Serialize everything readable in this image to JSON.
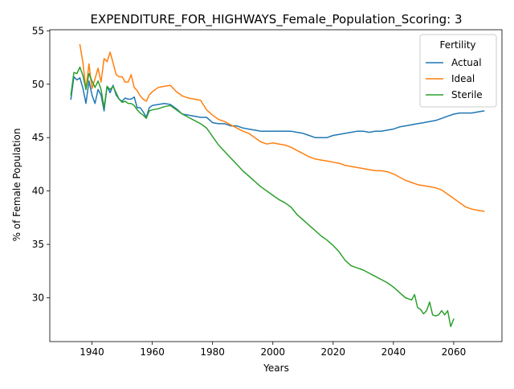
{
  "chart_data": {
    "type": "line",
    "title": "EXPENDITURE_FOR_HIGHWAYS_Female_Population_Scoring: 3",
    "xlabel": "Years",
    "ylabel": "% of Female Population",
    "xlim": [
      1926,
      2076
    ],
    "ylim": [
      25.9,
      55.1
    ],
    "xticks": [
      1940,
      1960,
      1980,
      2000,
      2020,
      2040,
      2060
    ],
    "yticks": [
      30,
      35,
      40,
      45,
      50,
      55
    ],
    "grid": false,
    "legend": {
      "title": "Fertility",
      "placement": "top-right"
    },
    "series": [
      {
        "name": "Actual",
        "color": "#1f77b4",
        "x": [
          1933,
          1934,
          1935,
          1936,
          1937,
          1938,
          1939,
          1940,
          1941,
          1942,
          1943,
          1944,
          1945,
          1946,
          1947,
          1948,
          1949,
          1950,
          1951,
          1952,
          1953,
          1954,
          1955,
          1956,
          1957,
          1958,
          1959,
          1960,
          1962,
          1964,
          1966,
          1968,
          1970,
          1972,
          1974,
          1976,
          1978,
          1980,
          1982,
          1984,
          1986,
          1988,
          1990,
          1992,
          1994,
          1996,
          1998,
          2000,
          2002,
          2004,
          2006,
          2008,
          2010,
          2012,
          2014,
          2016,
          2018,
          2020,
          2022,
          2024,
          2026,
          2028,
          2030,
          2032,
          2034,
          2036,
          2038,
          2040,
          2042,
          2044,
          2046,
          2048,
          2050,
          2052,
          2054,
          2056,
          2058,
          2060,
          2062,
          2064,
          2066,
          2068,
          2070
        ],
        "values": [
          48.6,
          50.7,
          50.4,
          50.6,
          49.6,
          48.2,
          50.3,
          49.0,
          48.2,
          49.5,
          49.0,
          47.5,
          49.8,
          49.2,
          49.9,
          49.0,
          48.6,
          48.4,
          48.7,
          48.6,
          48.6,
          48.8,
          47.8,
          47.8,
          47.4,
          46.9,
          47.8,
          48.0,
          48.1,
          48.2,
          48.1,
          47.7,
          47.2,
          47.1,
          47.0,
          46.9,
          46.9,
          46.4,
          46.3,
          46.3,
          46.1,
          46.1,
          45.9,
          45.8,
          45.7,
          45.6,
          45.6,
          45.6,
          45.6,
          45.6,
          45.6,
          45.5,
          45.4,
          45.2,
          45.0,
          45.0,
          45.0,
          45.2,
          45.3,
          45.4,
          45.5,
          45.6,
          45.6,
          45.5,
          45.6,
          45.6,
          45.7,
          45.8,
          46.0,
          46.1,
          46.2,
          46.3,
          46.4,
          46.5,
          46.6,
          46.8,
          47.0,
          47.2,
          47.3,
          47.3,
          47.3,
          47.4,
          47.5
        ]
      },
      {
        "name": "Ideal",
        "color": "#ff7f0e",
        "x": [
          1936,
          1937,
          1938,
          1939,
          1940,
          1941,
          1942,
          1943,
          1944,
          1945,
          1946,
          1947,
          1948,
          1949,
          1950,
          1951,
          1952,
          1953,
          1954,
          1955,
          1956,
          1957,
          1958,
          1959,
          1960,
          1962,
          1964,
          1966,
          1968,
          1970,
          1972,
          1974,
          1976,
          1978,
          1980,
          1982,
          1984,
          1986,
          1988,
          1990,
          1992,
          1994,
          1996,
          1998,
          2000,
          2002,
          2004,
          2006,
          2008,
          2010,
          2012,
          2014,
          2016,
          2018,
          2020,
          2022,
          2024,
          2026,
          2028,
          2030,
          2032,
          2034,
          2036,
          2038,
          2040,
          2042,
          2044,
          2046,
          2048,
          2050,
          2052,
          2054,
          2056,
          2058,
          2060,
          2062,
          2064,
          2066,
          2068,
          2070
        ],
        "values": [
          53.7,
          52.0,
          49.5,
          51.9,
          49.6,
          50.5,
          51.5,
          50.2,
          52.4,
          52.1,
          53.0,
          52.0,
          50.9,
          50.7,
          50.7,
          50.2,
          50.2,
          50.9,
          49.7,
          49.4,
          48.9,
          48.6,
          48.4,
          49.0,
          49.3,
          49.7,
          49.8,
          49.9,
          49.3,
          48.9,
          48.7,
          48.6,
          48.5,
          47.6,
          47.1,
          46.7,
          46.5,
          46.2,
          45.9,
          45.6,
          45.4,
          45.0,
          44.6,
          44.4,
          44.5,
          44.4,
          44.3,
          44.1,
          43.8,
          43.5,
          43.2,
          43.0,
          42.9,
          42.8,
          42.7,
          42.6,
          42.4,
          42.3,
          42.2,
          42.1,
          42.0,
          41.9,
          41.9,
          41.8,
          41.6,
          41.3,
          41.0,
          40.8,
          40.6,
          40.5,
          40.4,
          40.3,
          40.1,
          39.7,
          39.3,
          38.9,
          38.5,
          38.3,
          38.2,
          38.1
        ]
      },
      {
        "name": "Sterile",
        "color": "#2ca02c",
        "x": [
          1933,
          1934,
          1935,
          1936,
          1937,
          1938,
          1939,
          1940,
          1941,
          1942,
          1943,
          1944,
          1945,
          1946,
          1947,
          1948,
          1949,
          1950,
          1951,
          1952,
          1953,
          1954,
          1955,
          1956,
          1957,
          1958,
          1959,
          1960,
          1962,
          1964,
          1966,
          1968,
          1970,
          1972,
          1974,
          1976,
          1978,
          1980,
          1982,
          1984,
          1986,
          1988,
          1990,
          1992,
          1994,
          1996,
          1998,
          2000,
          2002,
          2004,
          2006,
          2008,
          2010,
          2012,
          2014,
          2016,
          2018,
          2020,
          2022,
          2024,
          2026,
          2028,
          2030,
          2032,
          2034,
          2036,
          2038,
          2040,
          2042,
          2044,
          2046,
          2047,
          2048,
          2049,
          2050,
          2051,
          2052,
          2053,
          2054,
          2055,
          2056,
          2057,
          2058,
          2059,
          2060
        ],
        "values": [
          49.0,
          51.1,
          51.0,
          51.6,
          50.8,
          49.5,
          51.0,
          50.3,
          49.7,
          50.3,
          49.5,
          47.8,
          49.8,
          49.5,
          49.8,
          49.2,
          48.6,
          48.3,
          48.4,
          48.2,
          48.2,
          48.0,
          47.6,
          47.3,
          47.1,
          46.8,
          47.5,
          47.6,
          47.7,
          47.9,
          48.0,
          47.6,
          47.2,
          46.9,
          46.6,
          46.3,
          45.9,
          45.1,
          44.3,
          43.7,
          43.1,
          42.5,
          41.9,
          41.4,
          40.9,
          40.4,
          40.0,
          39.6,
          39.2,
          38.9,
          38.5,
          37.8,
          37.3,
          36.8,
          36.3,
          35.8,
          35.4,
          34.9,
          34.3,
          33.5,
          33.0,
          32.8,
          32.6,
          32.3,
          32.0,
          31.7,
          31.4,
          31.0,
          30.5,
          30.0,
          29.8,
          30.3,
          29.1,
          28.9,
          28.5,
          28.8,
          29.6,
          28.4,
          28.3,
          28.4,
          28.8,
          28.4,
          28.8,
          27.3,
          28.0
        ]
      }
    ]
  }
}
